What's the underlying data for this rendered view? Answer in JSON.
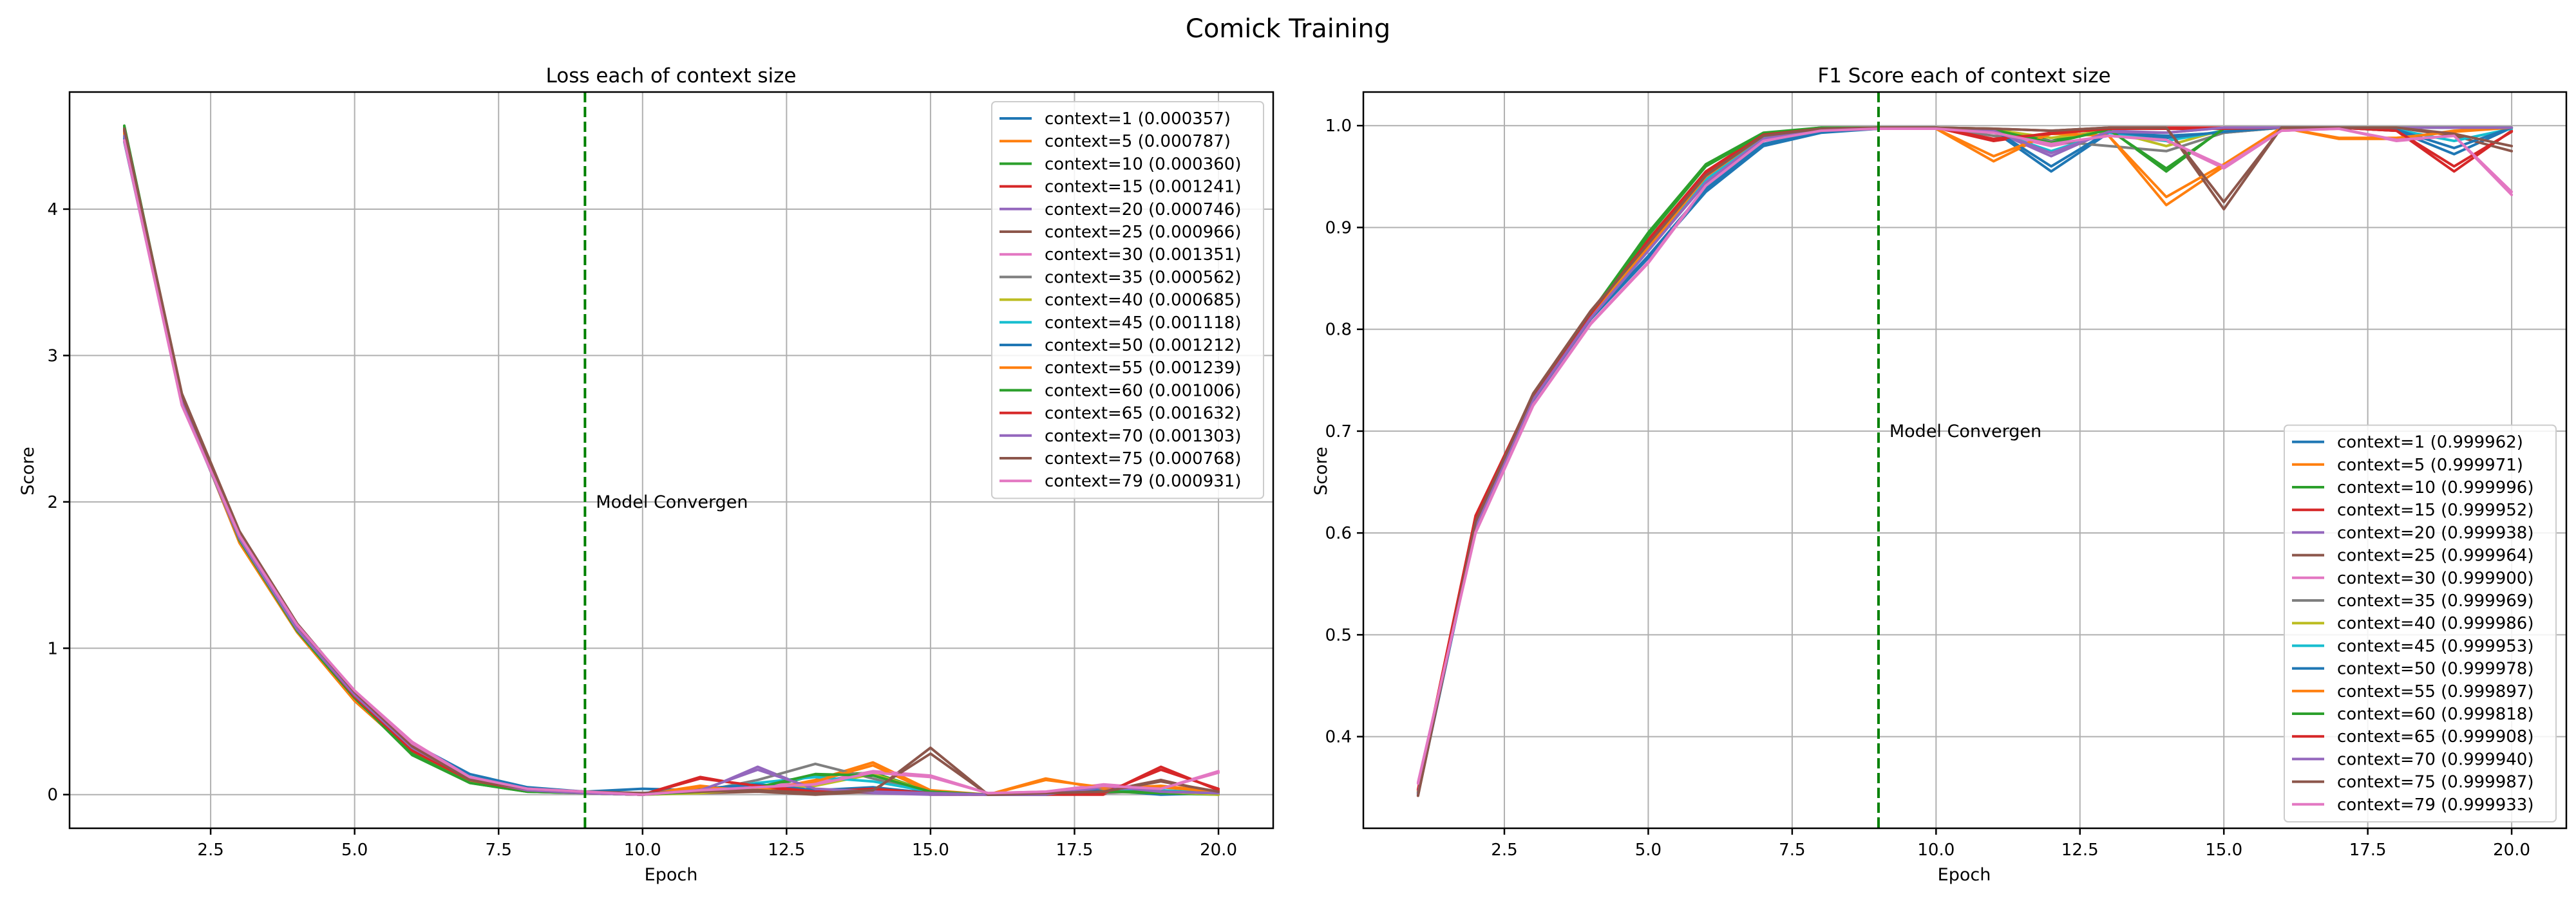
{
  "figure_title": "Comick Training",
  "annotation_text": "Model Convergen",
  "colors": [
    "#1f77b4",
    "#ff7f0e",
    "#2ca02c",
    "#d62728",
    "#9467bd",
    "#8c564b",
    "#e377c2",
    "#7f7f7f",
    "#bcbd22",
    "#17becf"
  ],
  "chart_data": [
    {
      "type": "line",
      "title": "Loss each of context size",
      "xlabel": "Epoch",
      "ylabel": "Score",
      "xlim": [
        0.05,
        20.95
      ],
      "ylim": [
        -0.23,
        4.8
      ],
      "xticks": [
        "2.5",
        "5.0",
        "7.5",
        "10.0",
        "12.5",
        "15.0",
        "17.5",
        "20.0"
      ],
      "yticks": [
        "0",
        "1",
        "2",
        "3",
        "4"
      ],
      "grid": true,
      "legend": "top-right",
      "vline_x": 9,
      "annotation": {
        "x": 9.1,
        "y": 2.0
      },
      "x": [
        1,
        2,
        3,
        4,
        5,
        6,
        7,
        8,
        9,
        10,
        11,
        12,
        13,
        14,
        15,
        16,
        17,
        18,
        19,
        20
      ],
      "series": [
        {
          "name": "context=1 (0.000357)",
          "values": [
            4.46,
            2.68,
            1.76,
            1.15,
            0.69,
            0.35,
            0.14,
            0.05,
            0.02,
            0.04,
            0.03,
            0.05,
            0.02,
            0.04,
            0.01,
            0.0,
            0.01,
            0.03,
            0.0,
            0.01
          ]
        },
        {
          "name": "context=5 (0.000787)",
          "values": [
            4.52,
            2.7,
            1.72,
            1.11,
            0.64,
            0.29,
            0.09,
            0.03,
            0.01,
            0.0,
            0.06,
            0.02,
            0.1,
            0.22,
            0.03,
            0.0,
            0.11,
            0.04,
            0.06,
            0.02
          ]
        },
        {
          "name": "context=10 (0.000360)",
          "values": [
            4.57,
            2.72,
            1.74,
            1.12,
            0.66,
            0.27,
            0.08,
            0.02,
            0.01,
            0.0,
            0.02,
            0.04,
            0.13,
            0.15,
            0.02,
            0.0,
            0.0,
            0.02,
            0.01,
            0.0
          ]
        },
        {
          "name": "context=15 (0.001241)",
          "values": [
            4.54,
            2.71,
            1.78,
            1.14,
            0.67,
            0.3,
            0.1,
            0.03,
            0.01,
            0.0,
            0.12,
            0.05,
            0.01,
            0.03,
            0.0,
            0.0,
            0.0,
            0.0,
            0.19,
            0.03
          ]
        },
        {
          "name": "context=20 (0.000746)",
          "values": [
            4.5,
            2.67,
            1.75,
            1.13,
            0.68,
            0.32,
            0.11,
            0.03,
            0.01,
            0.0,
            0.02,
            0.19,
            0.03,
            0.01,
            0.0,
            0.0,
            0.0,
            0.05,
            0.02,
            0.01
          ]
        },
        {
          "name": "context=25 (0.000966)",
          "values": [
            4.55,
            2.74,
            1.8,
            1.17,
            0.7,
            0.33,
            0.1,
            0.04,
            0.02,
            0.01,
            0.01,
            0.02,
            0.0,
            0.02,
            0.32,
            0.0,
            0.01,
            0.02,
            0.1,
            0.01
          ]
        },
        {
          "name": "context=30 (0.001351)",
          "values": [
            4.47,
            2.66,
            1.77,
            1.16,
            0.71,
            0.36,
            0.12,
            0.04,
            0.02,
            0.0,
            0.03,
            0.06,
            0.08,
            0.16,
            0.13,
            0.01,
            0.02,
            0.07,
            0.04,
            0.16
          ]
        },
        {
          "name": "context=35 (0.000562)",
          "values": [
            4.53,
            2.69,
            1.73,
            1.13,
            0.65,
            0.3,
            0.09,
            0.03,
            0.01,
            0.0,
            0.02,
            0.1,
            0.21,
            0.11,
            0.01,
            0.0,
            0.0,
            0.01,
            0.03,
            0.0
          ]
        },
        {
          "name": "context=40 (0.000685)",
          "values": [
            4.51,
            2.7,
            1.74,
            1.12,
            0.66,
            0.29,
            0.09,
            0.03,
            0.01,
            0.0,
            0.01,
            0.04,
            0.06,
            0.14,
            0.02,
            0.0,
            0.0,
            0.02,
            0.02,
            0.0
          ]
        },
        {
          "name": "context=45 (0.001118)",
          "values": [
            4.49,
            2.68,
            1.75,
            1.14,
            0.67,
            0.31,
            0.1,
            0.03,
            0.01,
            0.0,
            0.03,
            0.08,
            0.12,
            0.09,
            0.02,
            0.0,
            0.0,
            0.02,
            0.03,
            0.01
          ]
        },
        {
          "name": "context=50 (0.001212)",
          "values": [
            4.48,
            2.67,
            1.76,
            1.15,
            0.68,
            0.33,
            0.12,
            0.04,
            0.02,
            0.01,
            0.04,
            0.07,
            0.03,
            0.05,
            0.01,
            0.0,
            0.01,
            0.06,
            0.02,
            0.01
          ]
        },
        {
          "name": "context=55 (0.001239)",
          "values": [
            4.52,
            2.71,
            1.73,
            1.12,
            0.65,
            0.29,
            0.09,
            0.03,
            0.01,
            0.0,
            0.05,
            0.03,
            0.09,
            0.2,
            0.02,
            0.0,
            0.1,
            0.05,
            0.05,
            0.02
          ]
        },
        {
          "name": "context=60 (0.001006)",
          "values": [
            4.56,
            2.72,
            1.74,
            1.12,
            0.66,
            0.28,
            0.08,
            0.02,
            0.01,
            0.0,
            0.02,
            0.05,
            0.14,
            0.13,
            0.02,
            0.0,
            0.0,
            0.02,
            0.02,
            0.01
          ]
        },
        {
          "name": "context=65 (0.001632)",
          "values": [
            4.54,
            2.7,
            1.77,
            1.14,
            0.67,
            0.3,
            0.1,
            0.03,
            0.01,
            0.0,
            0.11,
            0.06,
            0.02,
            0.04,
            0.01,
            0.0,
            0.0,
            0.01,
            0.17,
            0.04
          ]
        },
        {
          "name": "context=70 (0.001303)",
          "values": [
            4.5,
            2.68,
            1.75,
            1.13,
            0.68,
            0.32,
            0.11,
            0.03,
            0.01,
            0.0,
            0.03,
            0.17,
            0.04,
            0.02,
            0.01,
            0.0,
            0.0,
            0.06,
            0.02,
            0.01
          ]
        },
        {
          "name": "context=75 (0.000768)",
          "values": [
            4.55,
            2.73,
            1.79,
            1.16,
            0.7,
            0.33,
            0.1,
            0.04,
            0.02,
            0.01,
            0.02,
            0.03,
            0.01,
            0.03,
            0.28,
            0.0,
            0.01,
            0.02,
            0.09,
            0.02
          ]
        },
        {
          "name": "context=79 (0.000931)",
          "values": [
            4.47,
            2.66,
            1.77,
            1.16,
            0.71,
            0.35,
            0.12,
            0.04,
            0.02,
            0.0,
            0.03,
            0.05,
            0.07,
            0.15,
            0.12,
            0.01,
            0.02,
            0.06,
            0.04,
            0.15
          ]
        }
      ]
    },
    {
      "type": "line",
      "title": "F1 Score each of context size",
      "xlabel": "Epoch",
      "ylabel": "Score",
      "xlim": [
        0.05,
        20.95
      ],
      "ylim": [
        0.31,
        1.033
      ],
      "xticks": [
        "2.5",
        "5.0",
        "7.5",
        "10.0",
        "12.5",
        "15.0",
        "17.5",
        "20.0"
      ],
      "yticks": [
        "0.4",
        "0.5",
        "0.6",
        "0.7",
        "0.8",
        "0.9",
        "1.0"
      ],
      "grid": true,
      "legend": "lower-right",
      "vline_x": 9,
      "annotation": {
        "x": 9.1,
        "y": 0.7
      },
      "x": [
        1,
        2,
        3,
        4,
        5,
        6,
        7,
        8,
        9,
        10,
        11,
        12,
        13,
        14,
        15,
        16,
        17,
        18,
        19,
        20
      ],
      "series": [
        {
          "name": "context=1 (0.999962)",
          "values": [
            0.343,
            0.605,
            0.73,
            0.81,
            0.87,
            0.935,
            0.98,
            0.993,
            0.997,
            0.997,
            0.995,
            0.955,
            0.993,
            0.99,
            0.993,
            0.998,
            0.998,
            0.995,
            0.972,
            0.998
          ]
        },
        {
          "name": "context=5 (0.999971)",
          "values": [
            0.346,
            0.61,
            0.732,
            0.812,
            0.88,
            0.95,
            0.99,
            0.997,
            0.998,
            0.997,
            0.965,
            0.993,
            0.99,
            0.922,
            0.96,
            0.998,
            0.987,
            0.987,
            0.995,
            0.998
          ]
        },
        {
          "name": "context=10 (0.999996)",
          "values": [
            0.345,
            0.615,
            0.736,
            0.816,
            0.895,
            0.962,
            0.993,
            0.998,
            0.998,
            0.998,
            0.997,
            0.985,
            0.997,
            0.955,
            0.998,
            0.998,
            0.998,
            0.998,
            0.998,
            0.998
          ]
        },
        {
          "name": "context=15 (0.999952)",
          "values": [
            0.348,
            0.617,
            0.735,
            0.815,
            0.888,
            0.955,
            0.992,
            0.997,
            0.998,
            0.998,
            0.985,
            0.993,
            0.998,
            0.998,
            0.998,
            0.998,
            0.998,
            0.995,
            0.955,
            0.995
          ]
        },
        {
          "name": "context=20 (0.999938)",
          "values": [
            0.344,
            0.608,
            0.731,
            0.811,
            0.878,
            0.945,
            0.988,
            0.997,
            0.998,
            0.998,
            0.995,
            0.97,
            0.995,
            0.993,
            0.998,
            0.998,
            0.998,
            0.998,
            0.998,
            0.998
          ]
        },
        {
          "name": "context=25 (0.999964)",
          "values": [
            0.342,
            0.612,
            0.737,
            0.818,
            0.885,
            0.952,
            0.99,
            0.997,
            0.998,
            0.998,
            0.997,
            0.995,
            0.998,
            0.998,
            0.918,
            0.998,
            0.998,
            0.998,
            0.99,
            0.975
          ]
        },
        {
          "name": "context=30 (0.999900)",
          "values": [
            0.355,
            0.6,
            0.725,
            0.805,
            0.865,
            0.94,
            0.985,
            0.995,
            0.997,
            0.997,
            0.993,
            0.98,
            0.99,
            0.985,
            0.958,
            0.995,
            0.997,
            0.985,
            0.99,
            0.932
          ]
        },
        {
          "name": "context=35 (0.999969)",
          "values": [
            0.346,
            0.611,
            0.733,
            0.813,
            0.882,
            0.95,
            0.99,
            0.997,
            0.998,
            0.998,
            0.99,
            0.985,
            0.98,
            0.975,
            0.993,
            0.998,
            0.998,
            0.998,
            0.998,
            0.998
          ]
        },
        {
          "name": "context=40 (0.999986)",
          "values": [
            0.347,
            0.613,
            0.734,
            0.814,
            0.884,
            0.952,
            0.991,
            0.997,
            0.998,
            0.998,
            0.996,
            0.988,
            0.995,
            0.98,
            0.996,
            0.998,
            0.998,
            0.998,
            0.998,
            0.998
          ]
        },
        {
          "name": "context=45 (0.999953)",
          "values": [
            0.345,
            0.609,
            0.732,
            0.812,
            0.879,
            0.947,
            0.989,
            0.997,
            0.998,
            0.998,
            0.994,
            0.975,
            0.993,
            0.985,
            0.995,
            0.998,
            0.998,
            0.996,
            0.985,
            0.997
          ]
        },
        {
          "name": "context=50 (0.999978)",
          "values": [
            0.344,
            0.606,
            0.731,
            0.811,
            0.872,
            0.938,
            0.982,
            0.994,
            0.997,
            0.997,
            0.996,
            0.96,
            0.994,
            0.988,
            0.994,
            0.998,
            0.998,
            0.996,
            0.978,
            0.998
          ]
        },
        {
          "name": "context=55 (0.999897)",
          "values": [
            0.346,
            0.61,
            0.732,
            0.812,
            0.88,
            0.95,
            0.99,
            0.997,
            0.998,
            0.997,
            0.97,
            0.992,
            0.99,
            0.93,
            0.962,
            0.998,
            0.988,
            0.988,
            0.994,
            0.998
          ]
        },
        {
          "name": "context=60 (0.999818)",
          "values": [
            0.345,
            0.614,
            0.735,
            0.815,
            0.892,
            0.96,
            0.992,
            0.998,
            0.998,
            0.998,
            0.996,
            0.983,
            0.996,
            0.958,
            0.997,
            0.998,
            0.998,
            0.998,
            0.998,
            0.998
          ]
        },
        {
          "name": "context=65 (0.999908)",
          "values": [
            0.348,
            0.616,
            0.735,
            0.815,
            0.887,
            0.954,
            0.991,
            0.997,
            0.998,
            0.998,
            0.987,
            0.992,
            0.997,
            0.997,
            0.997,
            0.998,
            0.998,
            0.995,
            0.96,
            0.994
          ]
        },
        {
          "name": "context=70 (0.999940)",
          "values": [
            0.344,
            0.607,
            0.731,
            0.811,
            0.877,
            0.944,
            0.987,
            0.997,
            0.998,
            0.998,
            0.995,
            0.973,
            0.994,
            0.993,
            0.998,
            0.998,
            0.998,
            0.998,
            0.998,
            0.998
          ]
        },
        {
          "name": "context=75 (0.999987)",
          "values": [
            0.342,
            0.611,
            0.736,
            0.817,
            0.884,
            0.951,
            0.99,
            0.997,
            0.998,
            0.998,
            0.997,
            0.995,
            0.998,
            0.998,
            0.925,
            0.998,
            0.998,
            0.998,
            0.992,
            0.98
          ]
        },
        {
          "name": "context=79 (0.999933)",
          "values": [
            0.354,
            0.601,
            0.726,
            0.806,
            0.866,
            0.941,
            0.985,
            0.995,
            0.997,
            0.997,
            0.993,
            0.982,
            0.99,
            0.986,
            0.96,
            0.995,
            0.997,
            0.986,
            0.99,
            0.935
          ]
        }
      ]
    }
  ]
}
